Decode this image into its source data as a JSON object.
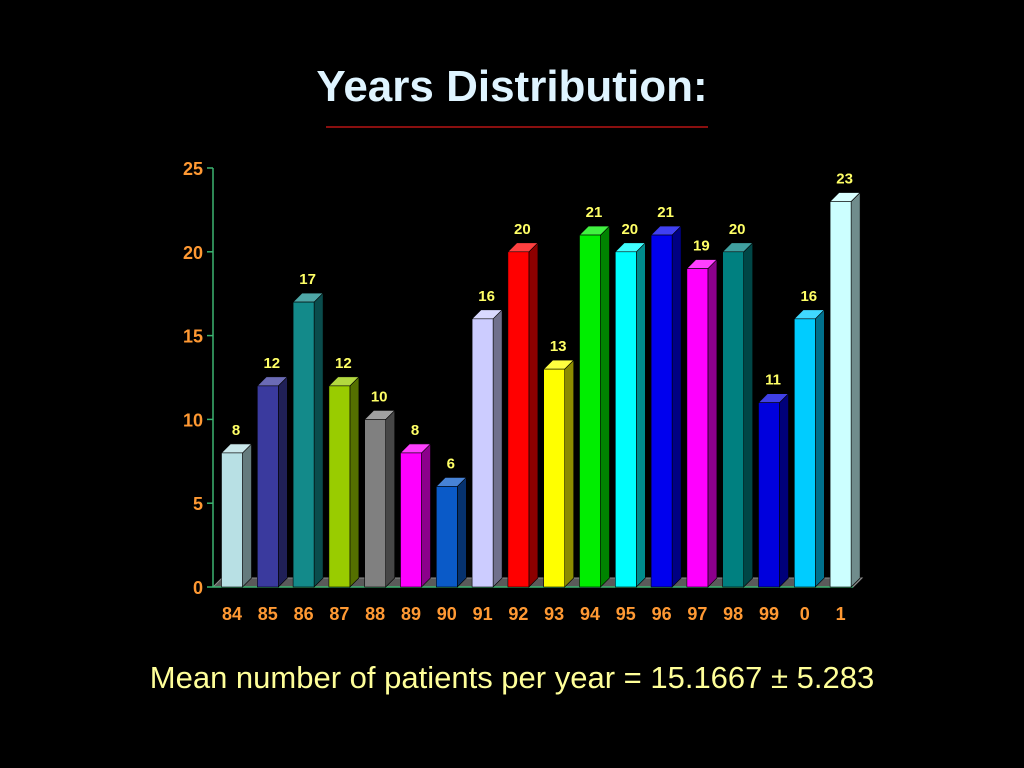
{
  "slide": {
    "title": "Years Distribution:",
    "footer": "Mean number of patients per year = 15.1667 ± 5.283"
  },
  "colors": {
    "background": "#000000",
    "title": "#dff4ff",
    "title_rule": "#8a0f0f",
    "axis": "#3cb371",
    "tick_label": "#ff9933",
    "data_label": "#ffff66",
    "footer": "#ffff99"
  },
  "chart_data": {
    "type": "bar",
    "title": "",
    "xlabel": "",
    "ylabel": "",
    "ylim": [
      0,
      25
    ],
    "yticks": [
      0,
      5,
      10,
      15,
      20,
      25
    ],
    "grid": false,
    "legend": "none",
    "categories": [
      "84",
      "85",
      "86",
      "87",
      "88",
      "89",
      "90",
      "91",
      "92",
      "93",
      "94",
      "95",
      "96",
      "97",
      "98",
      "99",
      "0",
      "1"
    ],
    "values": [
      8,
      12,
      17,
      12,
      10,
      8,
      6,
      16,
      20,
      13,
      21,
      20,
      21,
      19,
      20,
      11,
      16,
      23
    ],
    "bar_colors": [
      "#b8e0e4",
      "#3a3a9e",
      "#138a8a",
      "#99cc00",
      "#808080",
      "#ff00ff",
      "#0a5ac8",
      "#ccccff",
      "#ff0000",
      "#ffff00",
      "#00ee00",
      "#00ffff",
      "#0000ee",
      "#ff00ff",
      "#008080",
      "#0000dd",
      "#00ccff",
      "#ccffff"
    ]
  }
}
